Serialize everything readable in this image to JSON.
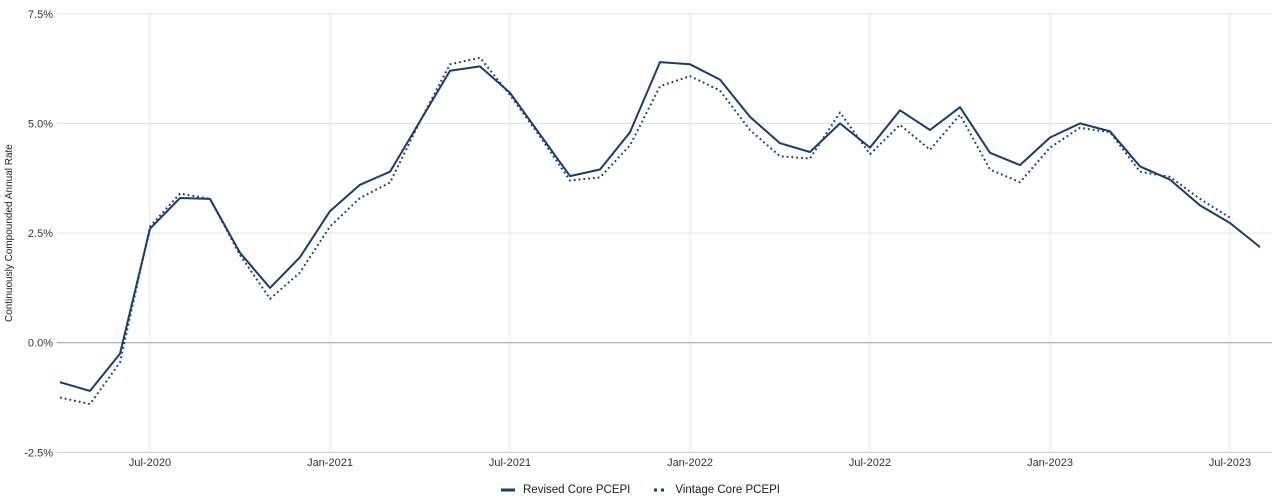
{
  "chart_data": {
    "type": "line",
    "title": "",
    "xlabel": "",
    "ylabel": "Continuously Compounded Annual Rate",
    "ylim": [
      -2.5,
      7.5
    ],
    "grid": true,
    "legend_position": "bottom-center",
    "line_color": "#1b3a6e",
    "x": [
      "Apr-2020",
      "May-2020",
      "Jun-2020",
      "Jul-2020",
      "Aug-2020",
      "Sep-2020",
      "Oct-2020",
      "Nov-2020",
      "Dec-2020",
      "Jan-2021",
      "Feb-2021",
      "Mar-2021",
      "Apr-2021",
      "May-2021",
      "Jun-2021",
      "Jul-2021",
      "Aug-2021",
      "Sep-2021",
      "Oct-2021",
      "Nov-2021",
      "Dec-2021",
      "Jan-2022",
      "Feb-2022",
      "Mar-2022",
      "Apr-2022",
      "May-2022",
      "Jun-2022",
      "Jul-2022",
      "Aug-2022",
      "Sep-2022",
      "Oct-2022",
      "Nov-2022",
      "Dec-2022",
      "Jan-2023",
      "Feb-2023",
      "Mar-2023",
      "Apr-2023",
      "May-2023",
      "Jun-2023",
      "Jul-2023",
      "Aug-2023"
    ],
    "series": [
      {
        "name": "Revised Core PCEPI",
        "style": "solid",
        "values": [
          -0.9,
          -1.1,
          -0.25,
          2.6,
          3.3,
          3.28,
          2.05,
          1.25,
          1.95,
          3.0,
          3.6,
          3.9,
          5.05,
          6.2,
          6.3,
          5.7,
          4.75,
          3.8,
          3.95,
          4.8,
          6.4,
          6.35,
          6.0,
          5.15,
          4.55,
          4.35,
          5.0,
          4.45,
          5.3,
          4.85,
          5.37,
          4.33,
          4.05,
          4.68,
          5.0,
          4.82,
          4.02,
          3.72,
          3.13,
          2.73,
          2.18
        ]
      },
      {
        "name": "Vintage Core PCEPI",
        "style": "dotted",
        "values": [
          -1.25,
          -1.4,
          -0.45,
          2.65,
          3.4,
          3.28,
          2.0,
          1.0,
          1.6,
          2.65,
          3.3,
          3.65,
          5.05,
          6.35,
          6.5,
          5.65,
          4.7,
          3.7,
          3.77,
          4.5,
          5.85,
          6.08,
          5.75,
          4.85,
          4.25,
          4.2,
          5.25,
          4.3,
          4.97,
          4.4,
          5.2,
          3.95,
          3.66,
          4.45,
          4.9,
          4.8,
          3.9,
          3.78,
          3.28,
          2.85
        ]
      }
    ],
    "x_ticks": [
      "Jul-2020",
      "Jan-2021",
      "Jul-2021",
      "Jan-2022",
      "Jul-2022",
      "Jan-2023",
      "Jul-2023"
    ],
    "y_ticks": [
      {
        "label": "-2.5%",
        "value": -2.5
      },
      {
        "label": "0.0%",
        "value": 0.0
      },
      {
        "label": "2.5%",
        "value": 2.5
      },
      {
        "label": "5.0%",
        "value": 5.0
      },
      {
        "label": "7.5%",
        "value": 7.5
      }
    ]
  },
  "colors": {
    "line": "#1b3a6e",
    "grid": "#e4e4e4",
    "zero_line": "#9a9a9a",
    "axis_line": "#cccccc",
    "tick_text": "#333333",
    "legend_text": "#1a1a1a"
  }
}
